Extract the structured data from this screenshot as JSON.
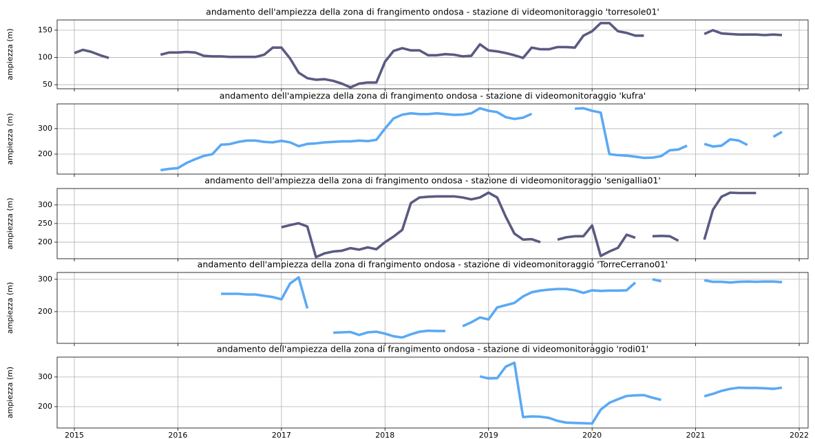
{
  "chart_data": [
    {
      "type": "line",
      "title": "andamento dell'ampiezza della zona di frangimento ondosa - stazione di videomonitoraggio 'torresole01'",
      "ylabel": "ampiezza (m)",
      "color": "#5a5a82",
      "grid": true,
      "x": [
        2015,
        2015.0833,
        2015.1667,
        2015.25,
        2015.3333,
        2015.4167,
        2015.5,
        2015.5833,
        2015.6667,
        2015.75,
        2015.8333,
        2015.9167,
        2016,
        2016.0833,
        2016.1667,
        2016.25,
        2016.3333,
        2016.4167,
        2016.5,
        2016.5833,
        2016.6667,
        2016.75,
        2016.8333,
        2016.9167,
        2017,
        2017.0833,
        2017.1667,
        2017.25,
        2017.3333,
        2017.4167,
        2017.5,
        2017.5833,
        2017.6667,
        2017.75,
        2017.8333,
        2017.9167,
        2018,
        2018.0833,
        2018.1667,
        2018.25,
        2018.3333,
        2018.4167,
        2018.5,
        2018.5833,
        2018.6667,
        2018.75,
        2018.8333,
        2018.9167,
        2019,
        2019.0833,
        2019.1667,
        2019.25,
        2019.3333,
        2019.4167,
        2019.5,
        2019.5833,
        2019.6667,
        2019.75,
        2019.8333,
        2019.9167,
        2020,
        2020.0833,
        2020.1667,
        2020.25,
        2020.3333,
        2020.4167,
        2020.5,
        2020.5833,
        2020.6667,
        2020.75,
        2020.8333,
        2020.9167,
        2021,
        2021.0833,
        2021.1667,
        2021.25,
        2021.3333,
        2021.4167,
        2021.5,
        2021.5833,
        2021.6667,
        2021.75,
        2021.8333
      ],
      "values": [
        108,
        114,
        110,
        104,
        99,
        null,
        null,
        null,
        null,
        null,
        105,
        109,
        109,
        110,
        109,
        103,
        102,
        102,
        101,
        101,
        101,
        101,
        105,
        118,
        118,
        98,
        72,
        62,
        59,
        60,
        57,
        52,
        45,
        52,
        54,
        54,
        92,
        112,
        117,
        113,
        113,
        104,
        104,
        106,
        105,
        102,
        103,
        124,
        113,
        111,
        108,
        104,
        99,
        118,
        115,
        115,
        119,
        119,
        118,
        140,
        148,
        163,
        163,
        148,
        145,
        140,
        140,
        null,
        null,
        null,
        null,
        null,
        null,
        143,
        150,
        144,
        143,
        142,
        142,
        142,
        141,
        142,
        141
      ],
      "xlim": [
        2014.834,
        2022.086
      ],
      "xticks": [
        2015,
        2016,
        2017,
        2018,
        2019,
        2020,
        2021,
        2022
      ],
      "ylim": [
        42.5,
        168.75
      ],
      "yticks": [
        50,
        100,
        150
      ]
    },
    {
      "type": "line",
      "title": "andamento dell'ampiezza della zona di frangimento ondosa - stazione di videomonitoraggio 'kufra'",
      "ylabel": "ampiezza (m)",
      "color": "#5aa9f5",
      "grid": true,
      "x": [
        2015,
        2015.0833,
        2015.1667,
        2015.25,
        2015.3333,
        2015.4167,
        2015.5,
        2015.5833,
        2015.6667,
        2015.75,
        2015.8333,
        2015.9167,
        2016,
        2016.0833,
        2016.1667,
        2016.25,
        2016.3333,
        2016.4167,
        2016.5,
        2016.5833,
        2016.6667,
        2016.75,
        2016.8333,
        2016.9167,
        2017,
        2017.0833,
        2017.1667,
        2017.25,
        2017.3333,
        2017.4167,
        2017.5,
        2017.5833,
        2017.6667,
        2017.75,
        2017.8333,
        2017.9167,
        2018,
        2018.0833,
        2018.1667,
        2018.25,
        2018.3333,
        2018.4167,
        2018.5,
        2018.5833,
        2018.6667,
        2018.75,
        2018.8333,
        2018.9167,
        2019,
        2019.0833,
        2019.1667,
        2019.25,
        2019.3333,
        2019.4167,
        2019.5,
        2019.5833,
        2019.6667,
        2019.75,
        2019.8333,
        2019.9167,
        2020,
        2020.0833,
        2020.1667,
        2020.25,
        2020.3333,
        2020.4167,
        2020.5,
        2020.5833,
        2020.6667,
        2020.75,
        2020.8333,
        2020.9167,
        2021,
        2021.0833,
        2021.1667,
        2021.25,
        2021.3333,
        2021.4167,
        2021.5,
        2021.5833,
        2021.6667,
        2021.75,
        2021.8333
      ],
      "values": [
        null,
        null,
        null,
        null,
        null,
        null,
        null,
        null,
        null,
        null,
        137,
        142,
        145,
        165,
        180,
        193,
        200,
        237,
        239,
        248,
        253,
        253,
        248,
        246,
        252,
        246,
        231,
        240,
        242,
        246,
        248,
        250,
        250,
        253,
        251,
        256,
        300,
        340,
        355,
        360,
        357,
        357,
        360,
        357,
        354,
        355,
        360,
        380,
        370,
        365,
        345,
        338,
        343,
        358,
        null,
        null,
        null,
        null,
        378,
        380,
        370,
        363,
        200,
        196,
        194,
        190,
        185,
        186,
        192,
        215,
        218,
        233,
        null,
        240,
        230,
        233,
        258,
        253,
        236,
        null,
        null,
        268,
        287
      ],
      "xlim": [
        2014.834,
        2022.086
      ],
      "xticks": [
        2015,
        2016,
        2017,
        2018,
        2019,
        2020,
        2021,
        2022
      ],
      "ylim": [
        121.6,
        397
      ],
      "yticks": [
        200,
        300
      ]
    },
    {
      "type": "line",
      "title": "andamento dell'ampiezza della zona di frangimento ondosa - stazione di videomonitoraggio 'senigallia01'",
      "ylabel": "ampiezza (m)",
      "color": "#5a5a82",
      "grid": true,
      "x": [
        2015,
        2015.0833,
        2015.1667,
        2015.25,
        2015.3333,
        2015.4167,
        2015.5,
        2015.5833,
        2015.6667,
        2015.75,
        2015.8333,
        2015.9167,
        2016,
        2016.0833,
        2016.1667,
        2016.25,
        2016.3333,
        2016.4167,
        2016.5,
        2016.5833,
        2016.6667,
        2016.75,
        2016.8333,
        2016.9167,
        2017,
        2017.0833,
        2017.1667,
        2017.25,
        2017.3333,
        2017.4167,
        2017.5,
        2017.5833,
        2017.6667,
        2017.75,
        2017.8333,
        2017.9167,
        2018,
        2018.0833,
        2018.1667,
        2018.25,
        2018.3333,
        2018.4167,
        2018.5,
        2018.5833,
        2018.6667,
        2018.75,
        2018.8333,
        2018.9167,
        2019,
        2019.0833,
        2019.1667,
        2019.25,
        2019.3333,
        2019.4167,
        2019.5,
        2019.5833,
        2019.6667,
        2019.75,
        2019.8333,
        2019.9167,
        2020,
        2020.0833,
        2020.1667,
        2020.25,
        2020.3333,
        2020.4167,
        2020.5,
        2020.5833,
        2020.6667,
        2020.75,
        2020.8333,
        2020.9167,
        2021,
        2021.0833,
        2021.1667,
        2021.25,
        2021.3333,
        2021.4167,
        2021.5,
        2021.5833,
        2021.6667,
        2021.75,
        2021.8333
      ],
      "values": [
        null,
        null,
        null,
        null,
        null,
        null,
        null,
        null,
        null,
        null,
        null,
        null,
        null,
        null,
        null,
        null,
        null,
        null,
        null,
        null,
        null,
        null,
        null,
        null,
        240,
        246,
        251,
        242,
        160,
        170,
        175,
        177,
        184,
        180,
        186,
        181,
        200,
        215,
        233,
        305,
        320,
        322,
        323,
        323,
        323,
        320,
        315,
        320,
        333,
        320,
        268,
        223,
        207,
        208,
        200,
        null,
        207,
        213,
        216,
        216,
        245,
        163,
        175,
        185,
        220,
        212,
        null,
        216,
        217,
        216,
        204,
        null,
        null,
        207,
        287,
        322,
        333,
        332,
        332,
        332,
        null,
        null,
        null
      ],
      "xlim": [
        2014.834,
        2022.086
      ],
      "xticks": [
        2015,
        2016,
        2017,
        2018,
        2019,
        2020,
        2021,
        2022
      ],
      "ylim": [
        155.6,
        344
      ],
      "yticks": [
        200,
        250,
        300
      ]
    },
    {
      "type": "line",
      "title": "andamento dell'ampiezza della zona di frangimento ondosa - stazione di videomonitoraggio 'TorreCerrano01'",
      "ylabel": "ampiezza (m)",
      "color": "#5aa9f5",
      "grid": true,
      "x": [
        2015,
        2015.0833,
        2015.1667,
        2015.25,
        2015.3333,
        2015.4167,
        2015.5,
        2015.5833,
        2015.6667,
        2015.75,
        2015.8333,
        2015.9167,
        2016,
        2016.0833,
        2016.1667,
        2016.25,
        2016.3333,
        2016.4167,
        2016.5,
        2016.5833,
        2016.6667,
        2016.75,
        2016.8333,
        2016.9167,
        2017,
        2017.0833,
        2017.1667,
        2017.25,
        2017.3333,
        2017.4167,
        2017.5,
        2017.5833,
        2017.6667,
        2017.75,
        2017.8333,
        2017.9167,
        2018,
        2018.0833,
        2018.1667,
        2018.25,
        2018.3333,
        2018.4167,
        2018.5,
        2018.5833,
        2018.6667,
        2018.75,
        2018.8333,
        2018.9167,
        2019,
        2019.0833,
        2019.1667,
        2019.25,
        2019.3333,
        2019.4167,
        2019.5,
        2019.5833,
        2019.6667,
        2019.75,
        2019.8333,
        2019.9167,
        2020,
        2020.0833,
        2020.1667,
        2020.25,
        2020.3333,
        2020.4167,
        2020.5,
        2020.5833,
        2020.6667,
        2020.75,
        2020.8333,
        2020.9167,
        2021,
        2021.0833,
        2021.1667,
        2021.25,
        2021.3333,
        2021.4167,
        2021.5,
        2021.5833,
        2021.6667,
        2021.75,
        2021.8333
      ],
      "values": [
        null,
        null,
        null,
        null,
        null,
        null,
        null,
        null,
        null,
        null,
        null,
        null,
        null,
        null,
        null,
        null,
        null,
        255,
        255,
        255,
        253,
        253,
        249,
        245,
        238,
        287,
        306,
        210,
        null,
        null,
        135,
        136,
        137,
        128,
        136,
        138,
        132,
        124,
        120,
        130,
        138,
        141,
        140,
        140,
        null,
        155,
        167,
        182,
        176,
        213,
        220,
        227,
        247,
        260,
        265,
        268,
        270,
        270,
        266,
        258,
        266,
        264,
        265,
        265,
        266,
        290,
        null,
        300,
        294,
        null,
        null,
        null,
        null,
        297,
        292,
        292,
        290,
        292,
        293,
        292,
        293,
        293,
        291
      ],
      "xlim": [
        2014.834,
        2022.086
      ],
      "xticks": [
        2015,
        2016,
        2017,
        2018,
        2019,
        2020,
        2021,
        2022
      ],
      "ylim": [
        102,
        321
      ],
      "yticks": [
        200,
        300
      ]
    },
    {
      "type": "line",
      "title": "andamento dell'ampiezza della zona di frangimento ondosa - stazione di videomonitoraggio 'rodi01'",
      "ylabel": "ampiezza (m)",
      "color": "#5aa9f5",
      "grid": true,
      "x": [
        2015,
        2015.0833,
        2015.1667,
        2015.25,
        2015.3333,
        2015.4167,
        2015.5,
        2015.5833,
        2015.6667,
        2015.75,
        2015.8333,
        2015.9167,
        2016,
        2016.0833,
        2016.1667,
        2016.25,
        2016.3333,
        2016.4167,
        2016.5,
        2016.5833,
        2016.6667,
        2016.75,
        2016.8333,
        2016.9167,
        2017,
        2017.0833,
        2017.1667,
        2017.25,
        2017.3333,
        2017.4167,
        2017.5,
        2017.5833,
        2017.6667,
        2017.75,
        2017.8333,
        2017.9167,
        2018,
        2018.0833,
        2018.1667,
        2018.25,
        2018.3333,
        2018.4167,
        2018.5,
        2018.5833,
        2018.6667,
        2018.75,
        2018.8333,
        2018.9167,
        2019,
        2019.0833,
        2019.1667,
        2019.25,
        2019.3333,
        2019.4167,
        2019.5,
        2019.5833,
        2019.6667,
        2019.75,
        2019.8333,
        2019.9167,
        2020,
        2020.0833,
        2020.1667,
        2020.25,
        2020.3333,
        2020.4167,
        2020.5,
        2020.5833,
        2020.6667,
        2020.75,
        2020.8333,
        2020.9167,
        2021,
        2021.0833,
        2021.1667,
        2021.25,
        2021.3333,
        2021.4167,
        2021.5,
        2021.5833,
        2021.6667,
        2021.75,
        2021.8333
      ],
      "values": [
        null,
        null,
        null,
        null,
        null,
        null,
        null,
        null,
        null,
        null,
        null,
        null,
        null,
        null,
        null,
        null,
        null,
        null,
        null,
        null,
        null,
        null,
        null,
        null,
        null,
        null,
        null,
        null,
        null,
        null,
        null,
        null,
        null,
        null,
        null,
        null,
        null,
        null,
        null,
        null,
        null,
        null,
        null,
        null,
        null,
        null,
        null,
        302,
        295,
        296,
        335,
        348,
        165,
        167,
        166,
        162,
        152,
        146,
        145,
        144,
        143,
        190,
        213,
        225,
        236,
        238,
        239,
        230,
        223,
        null,
        null,
        null,
        null,
        235,
        243,
        253,
        260,
        264,
        263,
        263,
        262,
        260,
        264
      ],
      "xlim": [
        2014.834,
        2022.086
      ],
      "xticks": [
        2015,
        2016,
        2017,
        2018,
        2019,
        2020,
        2021,
        2022
      ],
      "ylim": [
        128,
        367
      ],
      "yticks": [
        200,
        300
      ]
    }
  ]
}
